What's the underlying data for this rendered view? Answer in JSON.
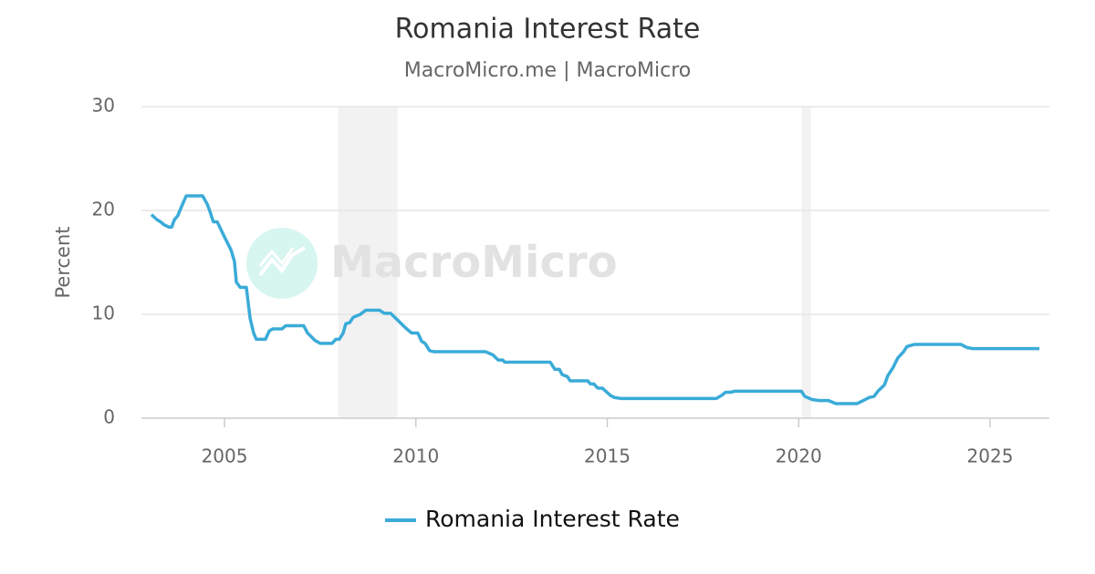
{
  "chart_data": {
    "type": "line",
    "title": "Romania Interest Rate",
    "subtitle": "MacroMicro.me | MacroMicro",
    "watermark": "MacroMicro",
    "y_label": "Percent",
    "x": [
      2003.09,
      2003.24,
      2003.33,
      2003.43,
      2003.55,
      2003.62,
      2003.69,
      2003.78,
      2003.88,
      2004.0,
      2004.43,
      2004.55,
      2004.62,
      2004.71,
      2004.81,
      2004.98,
      2005.17,
      2005.26,
      2005.31,
      2005.41,
      2005.57,
      2005.67,
      2005.76,
      2005.83,
      2006.07,
      2006.17,
      2006.26,
      2006.5,
      2006.6,
      2007.07,
      2007.17,
      2007.36,
      2007.5,
      2007.81,
      2007.91,
      2008.0,
      2008.1,
      2008.17,
      2008.27,
      2008.36,
      2008.55,
      2008.69,
      2009.05,
      2009.17,
      2009.34,
      2009.48,
      2009.7,
      2009.79,
      2009.89,
      2010.05,
      2010.15,
      2010.24,
      2010.36,
      2010.48,
      2011.82,
      2012.01,
      2012.15,
      2012.27,
      2012.32,
      2013.51,
      2013.63,
      2013.75,
      2013.82,
      2013.96,
      2014.03,
      2014.49,
      2014.56,
      2014.65,
      2014.75,
      2014.87,
      2014.99,
      2015.08,
      2015.18,
      2015.35,
      2017.85,
      2017.99,
      2018.09,
      2018.23,
      2018.33,
      2020.07,
      2020.16,
      2020.35,
      2020.54,
      2020.78,
      2020.97,
      2021.52,
      2021.69,
      2021.85,
      2021.97,
      2022.07,
      2022.24,
      2022.33,
      2022.47,
      2022.59,
      2022.74,
      2022.83,
      2023.02,
      2024.24,
      2024.4,
      2024.55,
      2026.29
    ],
    "series": [
      {
        "name": "Romania Interest Rate",
        "color": "#3aabd8",
        "values": [
          19.6,
          19.1,
          18.9,
          18.6,
          18.4,
          18.4,
          19.1,
          19.5,
          20.4,
          21.4,
          21.4,
          20.6,
          19.9,
          18.9,
          18.9,
          17.6,
          16.2,
          15.1,
          13.1,
          12.6,
          12.6,
          9.6,
          8.2,
          7.6,
          7.6,
          8.4,
          8.6,
          8.6,
          8.9,
          8.9,
          8.2,
          7.5,
          7.2,
          7.2,
          7.6,
          7.6,
          8.2,
          9.1,
          9.2,
          9.7,
          10.0,
          10.4,
          10.4,
          10.1,
          10.1,
          9.6,
          8.8,
          8.5,
          8.2,
          8.2,
          7.4,
          7.2,
          6.5,
          6.4,
          6.4,
          6.1,
          5.6,
          5.6,
          5.4,
          5.4,
          4.7,
          4.7,
          4.2,
          4.0,
          3.6,
          3.6,
          3.3,
          3.3,
          2.9,
          2.9,
          2.5,
          2.2,
          2.0,
          1.9,
          1.9,
          2.2,
          2.5,
          2.5,
          2.6,
          2.6,
          2.1,
          1.8,
          1.7,
          1.7,
          1.4,
          1.4,
          1.7,
          2.0,
          2.1,
          2.6,
          3.2,
          4.1,
          4.9,
          5.8,
          6.4,
          6.9,
          7.1,
          7.1,
          6.8,
          6.7,
          6.7
        ]
      }
    ],
    "shaded_periods": [
      {
        "start": 2007.97,
        "end": 2009.52
      },
      {
        "start": 2020.08,
        "end": 2020.32
      }
    ],
    "xlim": [
      2002.83,
      2026.55
    ],
    "ylim": [
      0,
      30
    ],
    "xticks": [
      2005,
      2010,
      2015,
      2020,
      2025
    ],
    "yticks": [
      0,
      10,
      20,
      30
    ],
    "grid": true,
    "legend": "bottom"
  }
}
